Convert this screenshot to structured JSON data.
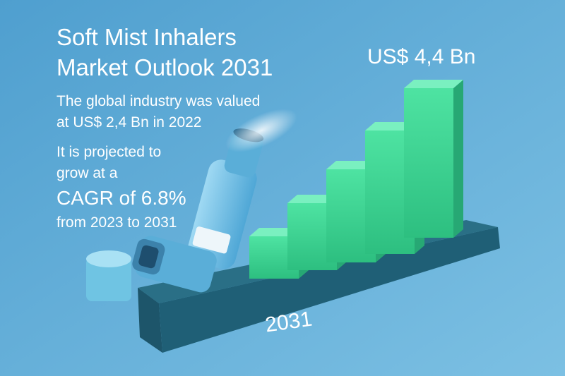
{
  "title": [
    "Soft Mist Inhalers",
    "Market Outlook 2031"
  ],
  "valuation": [
    "The global industry was valued",
    "at US$ 2,4 Bn in 2022"
  ],
  "projection": [
    "It is projected to",
    "grow at a",
    "CAGR of 6.8%",
    "from 2023 to 2031"
  ],
  "forecast_value": "US$ 4,4 Bn",
  "base_label": "2031"
}
